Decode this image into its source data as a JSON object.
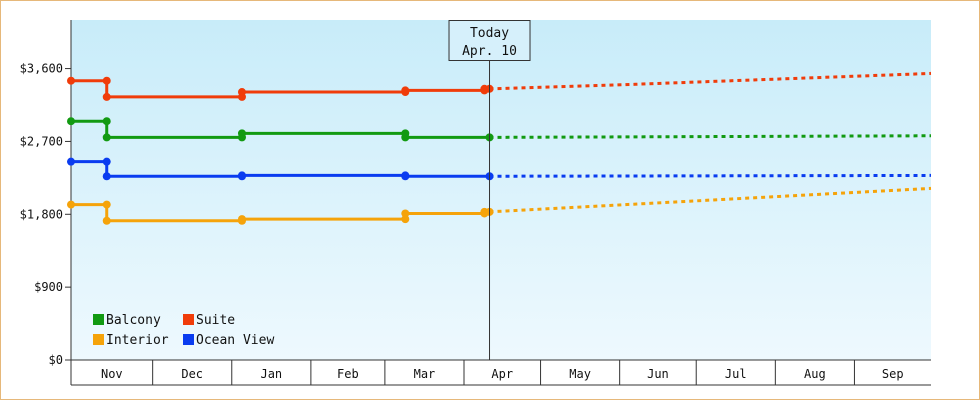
{
  "chart_data": {
    "type": "line",
    "y_ticks": [
      "$0",
      "$900",
      "$1,800",
      "$2,700",
      "$3,600"
    ],
    "y_tick_values": [
      0,
      900,
      1800,
      2700,
      3600
    ],
    "ylim": [
      0,
      4200
    ],
    "x_range": [
      "2023-10-29",
      "2024-09-30"
    ],
    "month_labels": [
      {
        "label": "Nov",
        "start": "2023-10-29",
        "end": "2023-11-30"
      },
      {
        "label": "Dec",
        "start": "2023-11-30",
        "end": "2023-12-31"
      },
      {
        "label": "Jan",
        "start": "2023-12-31",
        "end": "2024-01-31"
      },
      {
        "label": "Feb",
        "start": "2024-01-31",
        "end": "2024-02-29"
      },
      {
        "label": "Mar",
        "start": "2024-02-29",
        "end": "2024-03-31"
      },
      {
        "label": "Apr",
        "start": "2024-03-31",
        "end": "2024-04-30"
      },
      {
        "label": "May",
        "start": "2024-04-30",
        "end": "2024-05-31"
      },
      {
        "label": "Jun",
        "start": "2024-05-31",
        "end": "2024-06-30"
      },
      {
        "label": "Jul",
        "start": "2024-06-30",
        "end": "2024-07-31"
      },
      {
        "label": "Aug",
        "start": "2024-07-31",
        "end": "2024-08-31"
      },
      {
        "label": "Sep",
        "start": "2024-08-31",
        "end": "2024-09-30"
      }
    ],
    "today": {
      "date": "2024-04-10",
      "label_line1": "Today",
      "label_line2": "Apr. 10"
    },
    "grid": false,
    "legend_position": "bottom-left",
    "background_gradient": [
      "#c8ecf9",
      "#eef9fe"
    ],
    "series": [
      {
        "name": "Balcony",
        "color": "#129a12",
        "points": [
          {
            "x": "2023-10-29",
            "y": 2950
          },
          {
            "x": "2023-11-12",
            "y": 2950
          },
          {
            "x": "2023-11-12",
            "y": 2750
          },
          {
            "x": "2024-01-04",
            "y": 2750
          },
          {
            "x": "2024-01-04",
            "y": 2800
          },
          {
            "x": "2024-03-08",
            "y": 2800
          },
          {
            "x": "2024-03-08",
            "y": 2750
          },
          {
            "x": "2024-04-10",
            "y": 2750
          }
        ],
        "markers": [
          "2023-10-29",
          "2023-11-12",
          "2024-01-04",
          "2024-03-08",
          "2024-04-10"
        ],
        "forecast": [
          {
            "x": "2024-04-10",
            "y": 2750
          },
          {
            "x": "2024-09-30",
            "y": 2770
          }
        ]
      },
      {
        "name": "Suite",
        "color": "#f03c0a",
        "points": [
          {
            "x": "2023-10-29",
            "y": 3450
          },
          {
            "x": "2023-11-12",
            "y": 3450
          },
          {
            "x": "2023-11-12",
            "y": 3250
          },
          {
            "x": "2024-01-04",
            "y": 3250
          },
          {
            "x": "2024-01-04",
            "y": 3310
          },
          {
            "x": "2024-03-08",
            "y": 3310
          },
          {
            "x": "2024-03-08",
            "y": 3330
          },
          {
            "x": "2024-04-08",
            "y": 3330
          },
          {
            "x": "2024-04-08",
            "y": 3350
          },
          {
            "x": "2024-04-10",
            "y": 3350
          }
        ],
        "markers": [
          "2023-10-29",
          "2023-11-12",
          "2024-01-04",
          "2024-03-08",
          "2024-04-08",
          "2024-04-10"
        ],
        "forecast": [
          {
            "x": "2024-04-10",
            "y": 3350
          },
          {
            "x": "2024-06-01",
            "y": 3400
          },
          {
            "x": "2024-09-30",
            "y": 3540
          }
        ]
      },
      {
        "name": "Interior",
        "color": "#f5a30a",
        "points": [
          {
            "x": "2023-10-29",
            "y": 1920
          },
          {
            "x": "2023-11-12",
            "y": 1920
          },
          {
            "x": "2023-11-12",
            "y": 1720
          },
          {
            "x": "2024-01-04",
            "y": 1720
          },
          {
            "x": "2024-01-04",
            "y": 1740
          },
          {
            "x": "2024-03-08",
            "y": 1740
          },
          {
            "x": "2024-03-08",
            "y": 1810
          },
          {
            "x": "2024-04-08",
            "y": 1810
          },
          {
            "x": "2024-04-08",
            "y": 1830
          },
          {
            "x": "2024-04-10",
            "y": 1830
          }
        ],
        "markers": [
          "2023-10-29",
          "2023-11-12",
          "2024-01-04",
          "2024-03-08",
          "2024-04-08",
          "2024-04-10"
        ],
        "forecast": [
          {
            "x": "2024-04-10",
            "y": 1830
          },
          {
            "x": "2024-09-30",
            "y": 2120
          }
        ]
      },
      {
        "name": "Ocean View",
        "color": "#0a3cf0",
        "points": [
          {
            "x": "2023-10-29",
            "y": 2450
          },
          {
            "x": "2023-11-12",
            "y": 2450
          },
          {
            "x": "2023-11-12",
            "y": 2270
          },
          {
            "x": "2024-01-04",
            "y": 2270
          },
          {
            "x": "2024-01-04",
            "y": 2280
          },
          {
            "x": "2024-03-08",
            "y": 2280
          },
          {
            "x": "2024-03-08",
            "y": 2270
          },
          {
            "x": "2024-04-10",
            "y": 2270
          }
        ],
        "markers": [
          "2023-10-29",
          "2023-11-12",
          "2024-01-04",
          "2024-03-08",
          "2024-04-10"
        ],
        "forecast": [
          {
            "x": "2024-04-10",
            "y": 2270
          },
          {
            "x": "2024-09-30",
            "y": 2280
          }
        ]
      }
    ],
    "legend_order": [
      "Balcony",
      "Suite",
      "Interior",
      "Ocean View"
    ]
  }
}
